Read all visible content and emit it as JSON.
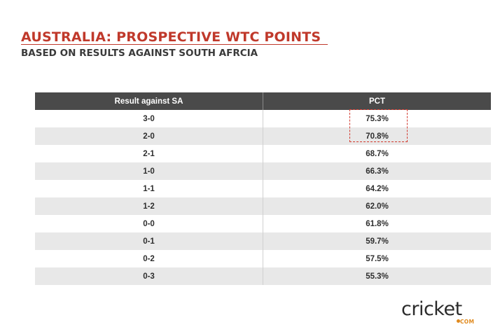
{
  "title": "AUSTRALIA: PROSPECTIVE WTC POINTS",
  "subtitle": "BASED ON RESULTS AGAINST SOUTH AFRCIA",
  "chart_data": {
    "type": "table",
    "columns": [
      "Result against SA",
      "PCT"
    ],
    "rows": [
      {
        "result": "3-0",
        "pct": "75.3%"
      },
      {
        "result": "2-0",
        "pct": "70.8%"
      },
      {
        "result": "2-1",
        "pct": "68.7%"
      },
      {
        "result": "1-0",
        "pct": "66.3%"
      },
      {
        "result": "1-1",
        "pct": "64.2%"
      },
      {
        "result": "1-2",
        "pct": "62.0%"
      },
      {
        "result": "0-0",
        "pct": "61.8%"
      },
      {
        "result": "0-1",
        "pct": "59.7%"
      },
      {
        "result": "0-2",
        "pct": "57.5%"
      },
      {
        "result": "0-3",
        "pct": "55.3%"
      }
    ],
    "highlighted_rows": [
      "3-0",
      "2-0"
    ]
  },
  "colors": {
    "title": "#c0392b",
    "header_bg": "#4a4a4a",
    "row_shade": "#e8e8e8",
    "highlight_border": "#d23b30",
    "logo_accent": "#e08a1e"
  },
  "logo": {
    "text": "cricket",
    "suffix": "COM",
    "icon": "cricket-ball-logo"
  }
}
